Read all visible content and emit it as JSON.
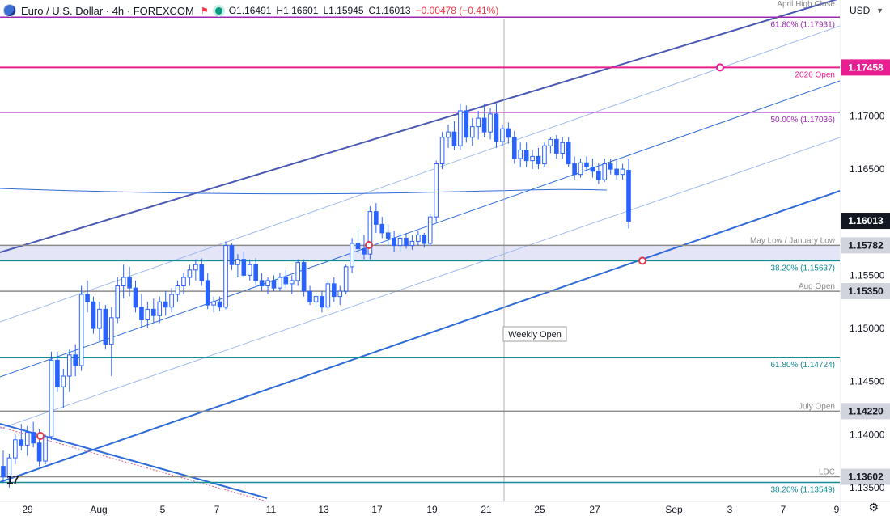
{
  "header": {
    "title": "Euro / U.S. Dollar · 4h · FOREXCOM",
    "open": "O1.16491",
    "high": "H1.16601",
    "low": "L1.15945",
    "close": "C1.16013",
    "change": "−0.00478 (−0.41%)"
  },
  "currency_selector": "USD",
  "logo_text": "17",
  "colors": {
    "candle_blue": "#2962ff",
    "magenta": "#e91e90",
    "purple": "#9c27b0",
    "teal": "#138a96",
    "gray": "#8a8a8a",
    "price_tag_dark": "#131722",
    "band": "#dcdcf5",
    "channel_dark": "#4a5ab3",
    "channel_mid": "#2f6bd8",
    "channel_light": "#9fbcef"
  },
  "chart_data": {
    "type": "candlestick",
    "symbol": "EURUSD",
    "interval": "4h",
    "ylim": [
      1.13495,
      1.1823
    ],
    "y_ticks": [
      "1.17000",
      "1.16500",
      "1.15500",
      "1.15000",
      "1.14500",
      "1.14000",
      "1.13500"
    ],
    "x_ticks": [
      "29",
      "Aug",
      "5",
      "7",
      "11",
      "13",
      "17",
      "19",
      "21",
      "25",
      "27",
      "Sep",
      "3",
      "7",
      "9"
    ],
    "levels": [
      {
        "price": 1.1822,
        "label": "April High Close",
        "color_key": "gray",
        "tag": ""
      },
      {
        "price": 1.17931,
        "label": "61.80% (1.17931)",
        "color_key": "purple",
        "tag": ""
      },
      {
        "price": 1.17458,
        "label": "2026 Open",
        "color_key": "magenta",
        "tag": "1.17458"
      },
      {
        "price": 1.17036,
        "label": "50.00% (1.17036)",
        "color_key": "purple",
        "tag": ""
      },
      {
        "price": 1.15782,
        "label": "May Low / January Low",
        "color_key": "gray",
        "tag": "1.15782"
      },
      {
        "price": 1.15637,
        "label": "38.20% (1.15637)",
        "color_key": "teal",
        "tag": ""
      },
      {
        "price": 1.1535,
        "label": "Aug Open",
        "color_key": "gray",
        "tag": "1.15350"
      },
      {
        "price": 1.14724,
        "label": "61.80% (1.14724)",
        "color_key": "teal",
        "tag": ""
      },
      {
        "price": 1.1422,
        "label": "July Open",
        "color_key": "gray",
        "tag": "1.14220"
      },
      {
        "price": 1.13602,
        "label": "LDC",
        "color_key": "gray",
        "tag": "1.13602"
      },
      {
        "price": 1.13549,
        "label": "38.20% (1.13549)",
        "color_key": "teal",
        "tag": ""
      }
    ],
    "current_price": "1.16013",
    "annotations": [
      "Weekly Open"
    ],
    "candles": [
      [
        1.137,
        1.1385,
        1.1355,
        1.136
      ],
      [
        1.136,
        1.1382,
        1.135,
        1.1378
      ],
      [
        1.1378,
        1.14,
        1.1372,
        1.1395
      ],
      [
        1.1395,
        1.141,
        1.1385,
        1.139
      ],
      [
        1.139,
        1.1408,
        1.138,
        1.1402
      ],
      [
        1.1402,
        1.1412,
        1.1388,
        1.1392
      ],
      [
        1.1392,
        1.1405,
        1.137,
        1.1375
      ],
      [
        1.1375,
        1.14,
        1.1372,
        1.1398
      ],
      [
        1.1398,
        1.1478,
        1.1395,
        1.147
      ],
      [
        1.147,
        1.1478,
        1.144,
        1.1445
      ],
      [
        1.1445,
        1.1462,
        1.1425,
        1.1455
      ],
      [
        1.1455,
        1.148,
        1.144,
        1.1475
      ],
      [
        1.1475,
        1.1485,
        1.1455,
        1.1465
      ],
      [
        1.1465,
        1.154,
        1.146,
        1.1532
      ],
      [
        1.1532,
        1.1545,
        1.1515,
        1.1525
      ],
      [
        1.1525,
        1.153,
        1.1495,
        1.15
      ],
      [
        1.15,
        1.1525,
        1.1488,
        1.1518
      ],
      [
        1.1518,
        1.1522,
        1.148,
        1.1485
      ],
      [
        1.1485,
        1.152,
        1.1455,
        1.151
      ],
      [
        1.151,
        1.1548,
        1.1505,
        1.154
      ],
      [
        1.154,
        1.156,
        1.1528,
        1.1548
      ],
      [
        1.1548,
        1.1558,
        1.153,
        1.1538
      ],
      [
        1.1538,
        1.1545,
        1.1515,
        1.152
      ],
      [
        1.152,
        1.1532,
        1.15,
        1.1508
      ],
      [
        1.1508,
        1.1525,
        1.15,
        1.1518
      ],
      [
        1.1518,
        1.1528,
        1.1505,
        1.1512
      ],
      [
        1.1512,
        1.153,
        1.1505,
        1.1525
      ],
      [
        1.1525,
        1.1535,
        1.1512,
        1.152
      ],
      [
        1.152,
        1.1538,
        1.1515,
        1.1532
      ],
      [
        1.1532,
        1.1545,
        1.1525,
        1.154
      ],
      [
        1.154,
        1.1552,
        1.1532,
        1.1548
      ],
      [
        1.1548,
        1.156,
        1.154,
        1.1555
      ],
      [
        1.1555,
        1.1565,
        1.1545,
        1.156
      ],
      [
        1.156,
        1.1566,
        1.154,
        1.1545
      ],
      [
        1.1545,
        1.1552,
        1.1518,
        1.1522
      ],
      [
        1.1522,
        1.153,
        1.1515,
        1.1525
      ],
      [
        1.1525,
        1.153,
        1.1516,
        1.152
      ],
      [
        1.152,
        1.1582,
        1.1518,
        1.1578
      ],
      [
        1.1578,
        1.158,
        1.1555,
        1.156
      ],
      [
        1.156,
        1.157,
        1.1548,
        1.1565
      ],
      [
        1.1565,
        1.1572,
        1.1548,
        1.155
      ],
      [
        1.155,
        1.1565,
        1.1545,
        1.156
      ],
      [
        1.156,
        1.1566,
        1.154,
        1.1545
      ],
      [
        1.1545,
        1.1552,
        1.1535,
        1.154
      ],
      [
        1.154,
        1.1548,
        1.1532,
        1.1545
      ],
      [
        1.1545,
        1.155,
        1.1535,
        1.1538
      ],
      [
        1.1538,
        1.1552,
        1.1535,
        1.1548
      ],
      [
        1.1548,
        1.1555,
        1.1538,
        1.1542
      ],
      [
        1.1542,
        1.155,
        1.1532,
        1.1545
      ],
      [
        1.1545,
        1.1565,
        1.154,
        1.1562
      ],
      [
        1.1562,
        1.1565,
        1.153,
        1.1535
      ],
      [
        1.1535,
        1.154,
        1.1522,
        1.1525
      ],
      [
        1.1525,
        1.1532,
        1.1518,
        1.153
      ],
      [
        1.153,
        1.1535,
        1.1515,
        1.152
      ],
      [
        1.152,
        1.1545,
        1.1518,
        1.1542
      ],
      [
        1.1542,
        1.1548,
        1.1525,
        1.153
      ],
      [
        1.153,
        1.154,
        1.1522,
        1.1535
      ],
      [
        1.1535,
        1.156,
        1.1532,
        1.1558
      ],
      [
        1.1558,
        1.1585,
        1.1552,
        1.158
      ],
      [
        1.158,
        1.1595,
        1.157,
        1.1575
      ],
      [
        1.1575,
        1.1588,
        1.1565,
        1.157
      ],
      [
        1.157,
        1.1615,
        1.1565,
        1.161
      ],
      [
        1.161,
        1.1618,
        1.159,
        1.1598
      ],
      [
        1.1598,
        1.1605,
        1.1585,
        1.159
      ],
      [
        1.159,
        1.1598,
        1.1578,
        1.1585
      ],
      [
        1.1585,
        1.1592,
        1.1572,
        1.1578
      ],
      [
        1.1578,
        1.159,
        1.1572,
        1.1585
      ],
      [
        1.1585,
        1.159,
        1.1575,
        1.1578
      ],
      [
        1.1578,
        1.1588,
        1.1574,
        1.1582
      ],
      [
        1.1582,
        1.1592,
        1.1578,
        1.1588
      ],
      [
        1.1588,
        1.159,
        1.1576,
        1.158
      ],
      [
        1.158,
        1.1608,
        1.1578,
        1.1605
      ],
      [
        1.1605,
        1.1658,
        1.16,
        1.1655
      ],
      [
        1.1655,
        1.1685,
        1.165,
        1.168
      ],
      [
        1.168,
        1.1692,
        1.167,
        1.1685
      ],
      [
        1.1685,
        1.1695,
        1.1668,
        1.1672
      ],
      [
        1.1672,
        1.1712,
        1.1668,
        1.1705
      ],
      [
        1.1705,
        1.171,
        1.1675,
        1.168
      ],
      [
        1.168,
        1.1698,
        1.1672,
        1.169
      ],
      [
        1.169,
        1.1705,
        1.1678,
        1.1698
      ],
      [
        1.1698,
        1.1712,
        1.168,
        1.1685
      ],
      [
        1.1685,
        1.1708,
        1.1678,
        1.1702
      ],
      [
        1.1702,
        1.1712,
        1.167,
        1.1676
      ],
      [
        1.1676,
        1.1692,
        1.1672,
        1.1688
      ],
      [
        1.1688,
        1.1694,
        1.1674,
        1.168
      ],
      [
        1.168,
        1.1686,
        1.1655,
        1.166
      ],
      [
        1.166,
        1.1675,
        1.1652,
        1.1668
      ],
      [
        1.1668,
        1.1675,
        1.1652,
        1.1658
      ],
      [
        1.1658,
        1.1668,
        1.165,
        1.1662
      ],
      [
        1.1662,
        1.167,
        1.165,
        1.1655
      ],
      [
        1.1655,
        1.1675,
        1.1652,
        1.1672
      ],
      [
        1.1672,
        1.168,
        1.1665,
        1.1678
      ],
      [
        1.1678,
        1.1682,
        1.166,
        1.1665
      ],
      [
        1.1665,
        1.168,
        1.166,
        1.1675
      ],
      [
        1.1675,
        1.168,
        1.1652,
        1.1655
      ],
      [
        1.1655,
        1.1662,
        1.164,
        1.1645
      ],
      [
        1.1645,
        1.166,
        1.1642,
        1.1656
      ],
      [
        1.1656,
        1.1662,
        1.1648,
        1.1652
      ],
      [
        1.1652,
        1.166,
        1.1642,
        1.1648
      ],
      [
        1.1648,
        1.1656,
        1.1636,
        1.164
      ],
      [
        1.164,
        1.166,
        1.1638,
        1.1655
      ],
      [
        1.1655,
        1.166,
        1.1645,
        1.165
      ],
      [
        1.165,
        1.1658,
        1.164,
        1.1645
      ],
      [
        1.1645,
        1.1655,
        1.164,
        1.165
      ],
      [
        1.1649,
        1.166,
        1.1594,
        1.1601
      ]
    ]
  }
}
